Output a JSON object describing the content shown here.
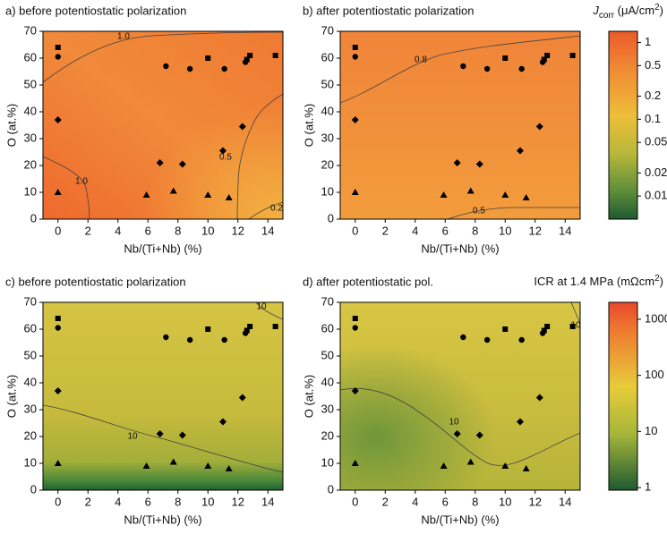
{
  "chart_data": [
    {
      "type": "contour",
      "title": "a) before potentiostatic polarization",
      "x_label": "Nb/(Ti+Nb) (%)",
      "y_label": "O (at.%)",
      "xlim": [
        -1,
        15
      ],
      "ylim": [
        0,
        70
      ],
      "xticks": [
        0,
        2,
        4,
        6,
        8,
        10,
        12,
        14
      ],
      "yticks": [
        0,
        10,
        20,
        30,
        40,
        50,
        60,
        70
      ],
      "contour_labels": [
        "1.0",
        "1.0",
        "0.5",
        "0.2"
      ],
      "series": [
        {
          "marker": "square",
          "color": "#000000",
          "x": [
            0,
            10,
            12.6,
            12.8,
            14.5
          ],
          "values": [
            64,
            60,
            59.5,
            61,
            61
          ]
        },
        {
          "marker": "circle",
          "color": "#000000",
          "x": [
            0,
            7.2,
            8.8,
            11.1,
            12.5
          ],
          "values": [
            60.5,
            57,
            56,
            56,
            58.5
          ]
        },
        {
          "marker": "diamond",
          "color": "#000000",
          "x": [
            0,
            6.8,
            8.3,
            11,
            12.3
          ],
          "values": [
            37,
            21,
            20.5,
            25.5,
            34.5
          ]
        },
        {
          "marker": "triangle",
          "color": "#000000",
          "x": [
            0,
            5.9,
            7.7,
            10,
            11.4
          ],
          "values": [
            10,
            9,
            10.5,
            9,
            8
          ]
        }
      ],
      "colorbar": {
        "title": {
          "italic": "J",
          "sub": "corr",
          "text": " (μA/cm",
          "sup": "2",
          "end": ")"
        },
        "scale": "log",
        "lim": [
          0.005,
          1.4
        ],
        "ticks": [
          1,
          0.5,
          0.2,
          0.1,
          0.05,
          0.02,
          0.01
        ]
      }
    },
    {
      "type": "contour",
      "title": "b) after potentiostatic polarization",
      "x_label": "Nb/(Ti+Nb) (%)",
      "y_label": "O (at.%)",
      "xlim": [
        -1,
        15
      ],
      "ylim": [
        0,
        70
      ],
      "xticks": [
        0,
        2,
        4,
        6,
        8,
        10,
        12,
        14
      ],
      "yticks": [
        0,
        10,
        20,
        30,
        40,
        50,
        60,
        70
      ],
      "contour_labels": [
        "0.8",
        "0.5"
      ],
      "series": [
        {
          "marker": "square",
          "color": "#000000",
          "x": [
            0,
            10,
            12.6,
            12.8,
            14.5
          ],
          "values": [
            64,
            60,
            59.5,
            61,
            61
          ]
        },
        {
          "marker": "circle",
          "color": "#000000",
          "x": [
            0,
            7.2,
            8.8,
            11.1,
            12.5
          ],
          "values": [
            60.5,
            57,
            56,
            56,
            58.5
          ]
        },
        {
          "marker": "diamond",
          "color": "#000000",
          "x": [
            0,
            6.8,
            8.3,
            11,
            12.3
          ],
          "values": [
            37,
            21,
            20.5,
            25.5,
            34.5
          ]
        },
        {
          "marker": "triangle",
          "color": "#000000",
          "x": [
            0,
            5.9,
            7.7,
            10,
            11.4
          ],
          "values": [
            10,
            9,
            10.5,
            9,
            8
          ]
        }
      ]
    },
    {
      "type": "contour",
      "title": "c) before potentiostatic polarization",
      "x_label": "Nb/(Ti+Nb) (%)",
      "y_label": "O (at.%)",
      "xlim": [
        -1,
        15
      ],
      "ylim": [
        0,
        70
      ],
      "xticks": [
        0,
        2,
        4,
        6,
        8,
        10,
        12,
        14
      ],
      "yticks": [
        0,
        10,
        20,
        30,
        40,
        50,
        60,
        70
      ],
      "contour_labels": [
        "10",
        "10"
      ],
      "series": [
        {
          "marker": "square",
          "color": "#000000",
          "x": [
            0,
            10,
            12.6,
            12.8,
            14.5
          ],
          "values": [
            64,
            60,
            59.5,
            61,
            61
          ]
        },
        {
          "marker": "circle",
          "color": "#000000",
          "x": [
            0,
            7.2,
            8.8,
            11.1,
            12.5
          ],
          "values": [
            60.5,
            57,
            56,
            56,
            58.5
          ]
        },
        {
          "marker": "diamond",
          "color": "#000000",
          "x": [
            0,
            6.8,
            8.3,
            11,
            12.3
          ],
          "values": [
            37,
            21,
            20.5,
            25.5,
            34.5
          ]
        },
        {
          "marker": "triangle",
          "color": "#000000",
          "x": [
            0,
            5.9,
            7.7,
            10,
            11.4
          ],
          "values": [
            10,
            9,
            10.5,
            9,
            8
          ]
        }
      ],
      "colorbar": {
        "title": {
          "text": "ICR at 1.4 MPa (mΩcm",
          "sup": "2",
          "end": ")"
        },
        "scale": "log",
        "lim": [
          0.9,
          2000
        ],
        "ticks": [
          1000,
          100,
          10,
          1
        ]
      }
    },
    {
      "type": "contour",
      "title": "d) after potentiostatic pol.",
      "x_label": "Nb/(Ti+Nb) (%)",
      "y_label": "O (at.%)",
      "xlim": [
        -1,
        15
      ],
      "ylim": [
        0,
        70
      ],
      "xticks": [
        0,
        2,
        4,
        6,
        8,
        10,
        12,
        14
      ],
      "yticks": [
        0,
        10,
        20,
        30,
        40,
        50,
        60,
        70
      ],
      "contour_labels": [
        "10",
        "10"
      ],
      "series": [
        {
          "marker": "square",
          "color": "#000000",
          "x": [
            0,
            10,
            12.6,
            12.8,
            14.5
          ],
          "values": [
            64,
            60,
            59.5,
            61,
            61
          ]
        },
        {
          "marker": "circle",
          "color": "#000000",
          "x": [
            0,
            7.2,
            8.8,
            11.1,
            12.5
          ],
          "values": [
            60.5,
            57,
            56,
            56,
            58.5
          ]
        },
        {
          "marker": "diamond",
          "color": "#000000",
          "x": [
            0,
            6.8,
            8.3,
            11,
            12.3
          ],
          "values": [
            37,
            21,
            20.5,
            25.5,
            34.5
          ]
        },
        {
          "marker": "triangle",
          "color": "#000000",
          "x": [
            0,
            5.9,
            7.7,
            10,
            11.4
          ],
          "values": [
            10,
            9,
            10.5,
            9,
            8
          ]
        }
      ]
    }
  ]
}
